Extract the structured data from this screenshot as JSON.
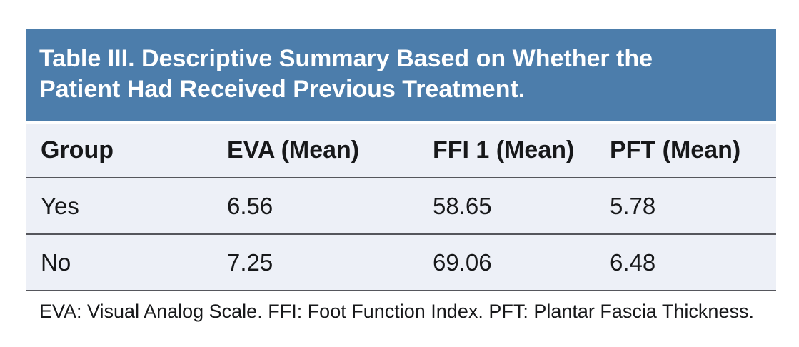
{
  "title": "Table III. Descriptive Summary Based on Whether the Patient Had Received Previous Treatment.",
  "table": {
    "columns": [
      "Group",
      "EVA (Mean)",
      "FFI 1 (Mean)",
      "PFT (Mean)"
    ],
    "rows": [
      [
        "Yes",
        "6.56",
        "58.65",
        "5.78"
      ],
      [
        "No",
        "7.25",
        "69.06",
        "6.48"
      ]
    ]
  },
  "footnote": "EVA: Visual Analog Scale. FFI: Foot Function Index. PFT: Plantar Fascia Thickness.",
  "colors": {
    "title_bar_bg": "#4c7dab",
    "title_text": "#ffffff",
    "body_bg": "#edf0f7",
    "rule": "#55565c",
    "text": "#17181a",
    "page_bg": "#ffffff"
  }
}
